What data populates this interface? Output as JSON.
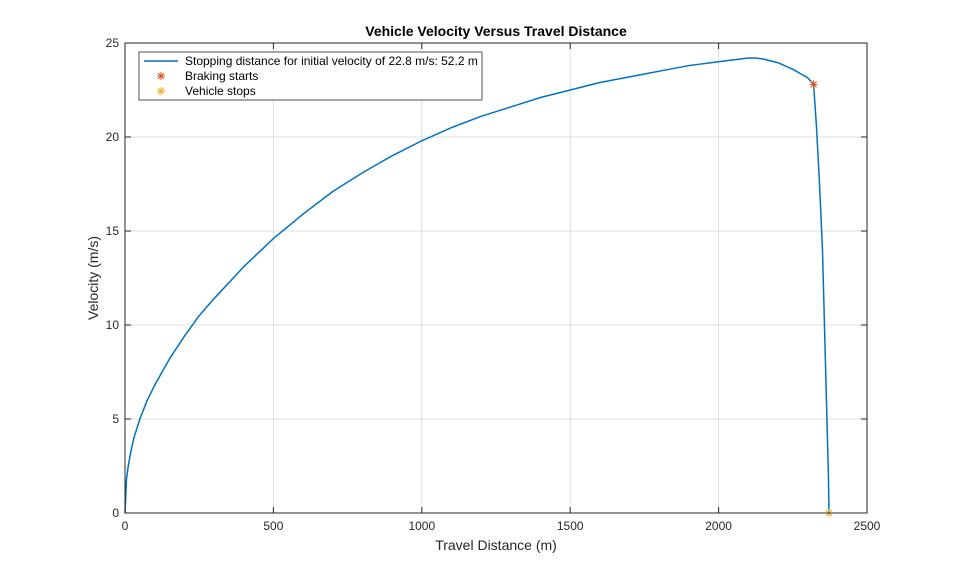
{
  "chart_data": {
    "type": "line",
    "title": "Vehicle Velocity Versus Travel Distance",
    "xlabel": "Travel Distance (m)",
    "ylabel": "Velocity (m/s)",
    "xlim": [
      0,
      2500
    ],
    "ylim": [
      0,
      25
    ],
    "xticks": [
      0,
      500,
      1000,
      1500,
      2000,
      2500
    ],
    "yticks": [
      0,
      5,
      10,
      15,
      20,
      25
    ],
    "grid": true,
    "legend_position": "top-left",
    "colors": {
      "line": "#0072BD",
      "braking": "#D95319",
      "stops": "#EDB120",
      "axis": "#262626",
      "grid": "#dfdfdf"
    },
    "series": [
      {
        "name": "Stopping distance for initial velocity of 22.8 m/s: 52.2 m",
        "marker": "none",
        "x": [
          0,
          5,
          10,
          20,
          30,
          50,
          75,
          100,
          150,
          200,
          250,
          300,
          400,
          500,
          600,
          700,
          800,
          900,
          1000,
          1100,
          1200,
          1300,
          1400,
          1500,
          1600,
          1700,
          1800,
          1900,
          2000,
          2050,
          2100,
          2125,
          2150,
          2200,
          2250,
          2300,
          2320,
          2330,
          2340,
          2350,
          2355,
          2360,
          2365,
          2370,
          2372
        ],
        "y": [
          0,
          1.8,
          2.4,
          3.3,
          4.0,
          5.0,
          6.0,
          6.8,
          8.2,
          9.4,
          10.5,
          11.4,
          13.1,
          14.6,
          15.9,
          17.1,
          18.1,
          19.0,
          19.8,
          20.5,
          21.1,
          21.6,
          22.1,
          22.5,
          22.9,
          23.2,
          23.5,
          23.8,
          24.0,
          24.1,
          24.2,
          24.2,
          24.15,
          23.95,
          23.6,
          23.15,
          22.8,
          20.5,
          17.5,
          14.0,
          11.0,
          8.0,
          5.0,
          2.0,
          0
        ]
      },
      {
        "name": "Braking starts",
        "marker": "asterisk",
        "x": [
          2320
        ],
        "y": [
          22.8
        ]
      },
      {
        "name": "Vehicle stops",
        "marker": "asterisk",
        "x": [
          2372
        ],
        "y": [
          0
        ]
      }
    ]
  }
}
